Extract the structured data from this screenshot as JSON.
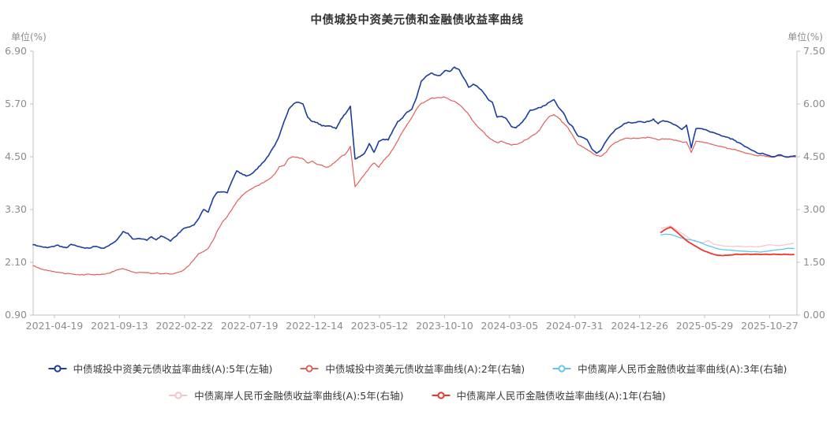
{
  "chart_data": {
    "type": "line",
    "title": "中债城投中资美元债和金融债收益率曲线",
    "left_axis": {
      "label": "单位(%)",
      "min": 0.9,
      "max": 6.9,
      "ticks": [
        "6.90",
        "5.70",
        "4.50",
        "3.30",
        "2.10",
        "0.90"
      ]
    },
    "right_axis": {
      "label": "单位(%)",
      "min": 0.0,
      "max": 7.5,
      "ticks": [
        "7.50",
        "6.00",
        "4.50",
        "3.00",
        "1.50",
        "0.00"
      ]
    },
    "x_axis": {
      "tick_labels": [
        "2021-04-19",
        "2021-09-13",
        "2022-02-22",
        "2022-07-19",
        "2022-12-14",
        "2023-05-12",
        "2023-10-10",
        "2024-03-05",
        "2024-07-31",
        "2024-12-26",
        "2025-05-29",
        "2025-10-27"
      ]
    },
    "grid": false,
    "legend_position": "bottom",
    "legend_rows": [
      [
        0,
        1,
        2
      ],
      [
        3,
        4
      ]
    ],
    "series": [
      {
        "name": "中债城投中资美元债收益率曲线(A):5年(左轴)",
        "axis": "left",
        "color": "#1b3e9e",
        "line_width": 1.6,
        "marker": "ring",
        "start": 0.0,
        "end": 0.998,
        "noise": 1.4,
        "values": [
          2.5,
          2.47,
          2.45,
          2.43,
          2.46,
          2.49,
          2.46,
          2.43,
          2.51,
          2.48,
          2.45,
          2.42,
          2.42,
          2.46,
          2.44,
          2.42,
          2.48,
          2.55,
          2.65,
          2.8,
          2.76,
          2.63,
          2.64,
          2.63,
          2.6,
          2.68,
          2.61,
          2.7,
          2.65,
          2.58,
          2.68,
          2.78,
          2.88,
          2.9,
          2.95,
          3.1,
          3.3,
          3.24,
          3.55,
          3.7,
          3.7,
          3.68,
          3.95,
          4.18,
          4.12,
          4.06,
          4.1,
          4.2,
          4.3,
          4.42,
          4.58,
          4.75,
          4.98,
          5.3,
          5.58,
          5.7,
          5.74,
          5.7,
          5.4,
          5.3,
          5.28,
          5.2,
          5.2,
          5.19,
          5.14,
          5.35,
          5.48,
          5.65,
          4.45,
          4.5,
          4.58,
          4.8,
          4.6,
          4.85,
          4.9,
          4.88,
          5.1,
          5.3,
          5.38,
          5.52,
          5.58,
          5.85,
          6.22,
          6.33,
          6.4,
          6.36,
          6.35,
          6.46,
          6.44,
          6.54,
          6.48,
          6.28,
          6.08,
          6.15,
          6.08,
          5.98,
          5.82,
          5.74,
          5.4,
          5.42,
          5.36,
          5.19,
          5.16,
          5.26,
          5.38,
          5.56,
          5.58,
          5.62,
          5.66,
          5.74,
          5.8,
          5.62,
          5.5,
          5.28,
          5.18,
          4.98,
          4.94,
          4.89,
          4.68,
          4.58,
          4.66,
          4.85,
          5.0,
          5.12,
          5.18,
          5.26,
          5.28,
          5.28,
          5.3,
          5.28,
          5.3,
          5.36,
          5.25,
          5.32,
          5.3,
          5.25,
          5.2,
          5.12,
          5.22,
          4.7,
          5.14,
          5.14,
          5.12,
          5.06,
          5.04,
          5.0,
          4.96,
          4.93,
          4.88,
          4.82,
          4.76,
          4.7,
          4.64,
          4.58,
          4.58,
          4.54,
          4.5,
          4.52,
          4.54,
          4.5,
          4.51,
          4.52
        ]
      },
      {
        "name": "中债城投中资美元债收益率曲线(A):2年(右轴)",
        "axis": "right",
        "color": "#e0605c",
        "line_width": 1.2,
        "marker": "ring",
        "start": 0.0,
        "end": 0.998,
        "noise": 1.2,
        "values": [
          1.4,
          1.35,
          1.3,
          1.27,
          1.24,
          1.22,
          1.2,
          1.18,
          1.17,
          1.15,
          1.14,
          1.15,
          1.16,
          1.14,
          1.15,
          1.16,
          1.19,
          1.24,
          1.29,
          1.32,
          1.27,
          1.23,
          1.2,
          1.21,
          1.21,
          1.18,
          1.2,
          1.17,
          1.19,
          1.16,
          1.19,
          1.23,
          1.3,
          1.42,
          1.58,
          1.75,
          1.8,
          1.9,
          2.12,
          2.42,
          2.65,
          2.8,
          3.0,
          3.22,
          3.38,
          3.5,
          3.58,
          3.66,
          3.72,
          3.8,
          3.88,
          4.0,
          4.22,
          4.25,
          4.45,
          4.5,
          4.48,
          4.44,
          4.32,
          4.38,
          4.28,
          4.26,
          4.2,
          4.26,
          4.38,
          4.5,
          4.58,
          4.8,
          3.65,
          3.82,
          4.0,
          4.18,
          4.32,
          4.2,
          4.4,
          4.52,
          4.72,
          4.95,
          5.2,
          5.42,
          5.62,
          5.86,
          6.02,
          6.08,
          6.16,
          6.17,
          6.18,
          6.19,
          6.12,
          6.08,
          5.98,
          5.85,
          5.7,
          5.5,
          5.34,
          5.22,
          5.08,
          4.98,
          4.9,
          4.94,
          4.88,
          4.83,
          4.85,
          4.9,
          4.98,
          5.06,
          5.14,
          5.26,
          5.48,
          5.64,
          5.7,
          5.6,
          5.46,
          5.32,
          5.1,
          4.86,
          4.78,
          4.71,
          4.62,
          4.53,
          4.52,
          4.62,
          4.8,
          4.91,
          4.97,
          5.02,
          5.02,
          5.03,
          5.02,
          5.04,
          5.05,
          5.02,
          4.98,
          5.01,
          5.0,
          4.99,
          4.96,
          4.92,
          4.92,
          4.62,
          4.94,
          4.92,
          4.9,
          4.86,
          4.83,
          4.8,
          4.77,
          4.73,
          4.71,
          4.67,
          4.63,
          4.59,
          4.56,
          4.52,
          4.53,
          4.51,
          4.49,
          4.52,
          4.53,
          4.48,
          4.5,
          4.49
        ]
      },
      {
        "name": "中债离岸人民币金融债收益率曲线(A):3年(右轴)",
        "axis": "right",
        "color": "#5ec8ef",
        "line_width": 1.3,
        "marker": "ring",
        "start": 0.822,
        "end": 0.996,
        "noise": 0.5,
        "values": [
          2.28,
          2.3,
          2.29,
          2.25,
          2.2,
          2.17,
          2.14,
          2.12,
          2.08,
          2.02,
          1.97,
          1.93,
          1.88,
          1.86,
          1.85,
          1.84,
          1.83,
          1.82,
          1.81,
          1.8,
          1.8,
          1.79,
          1.81,
          1.83,
          1.85,
          1.86,
          1.88,
          1.9,
          1.89
        ]
      },
      {
        "name": "中债离岸人民币金融债收益率曲线(A):5年(右轴)",
        "axis": "right",
        "color": "#f6c3c8",
        "line_width": 1.2,
        "marker": "ring",
        "start": 0.822,
        "end": 0.996,
        "noise": 0.5,
        "values": [
          2.46,
          2.5,
          2.53,
          2.45,
          2.36,
          2.27,
          2.18,
          2.1,
          2.08,
          2.06,
          2.12,
          2.02,
          1.99,
          1.97,
          1.96,
          1.95,
          1.96,
          1.95,
          1.94,
          1.95,
          1.94,
          1.95,
          1.98,
          2.0,
          1.98,
          1.97,
          2.0,
          2.02,
          2.04
        ]
      },
      {
        "name": "中债离岸人民币金融债收益率曲线(A):1年(右轴)",
        "axis": "right",
        "color": "#f0352e",
        "line_width": 1.8,
        "marker": "ring",
        "start": 0.822,
        "end": 0.996,
        "noise": 0.4,
        "values": [
          2.35,
          2.44,
          2.5,
          2.4,
          2.28,
          2.16,
          2.06,
          1.98,
          1.9,
          1.83,
          1.78,
          1.73,
          1.7,
          1.69,
          1.7,
          1.71,
          1.73,
          1.72,
          1.73,
          1.72,
          1.73,
          1.72,
          1.73,
          1.72,
          1.73,
          1.72,
          1.73,
          1.72,
          1.72
        ]
      }
    ],
    "colors": {
      "axis_line": "#c2c2c2",
      "tick_text": "#8c8c8c",
      "title_text": "#333333",
      "legend_text": "#3a3a3a",
      "background": "#ffffff"
    }
  }
}
